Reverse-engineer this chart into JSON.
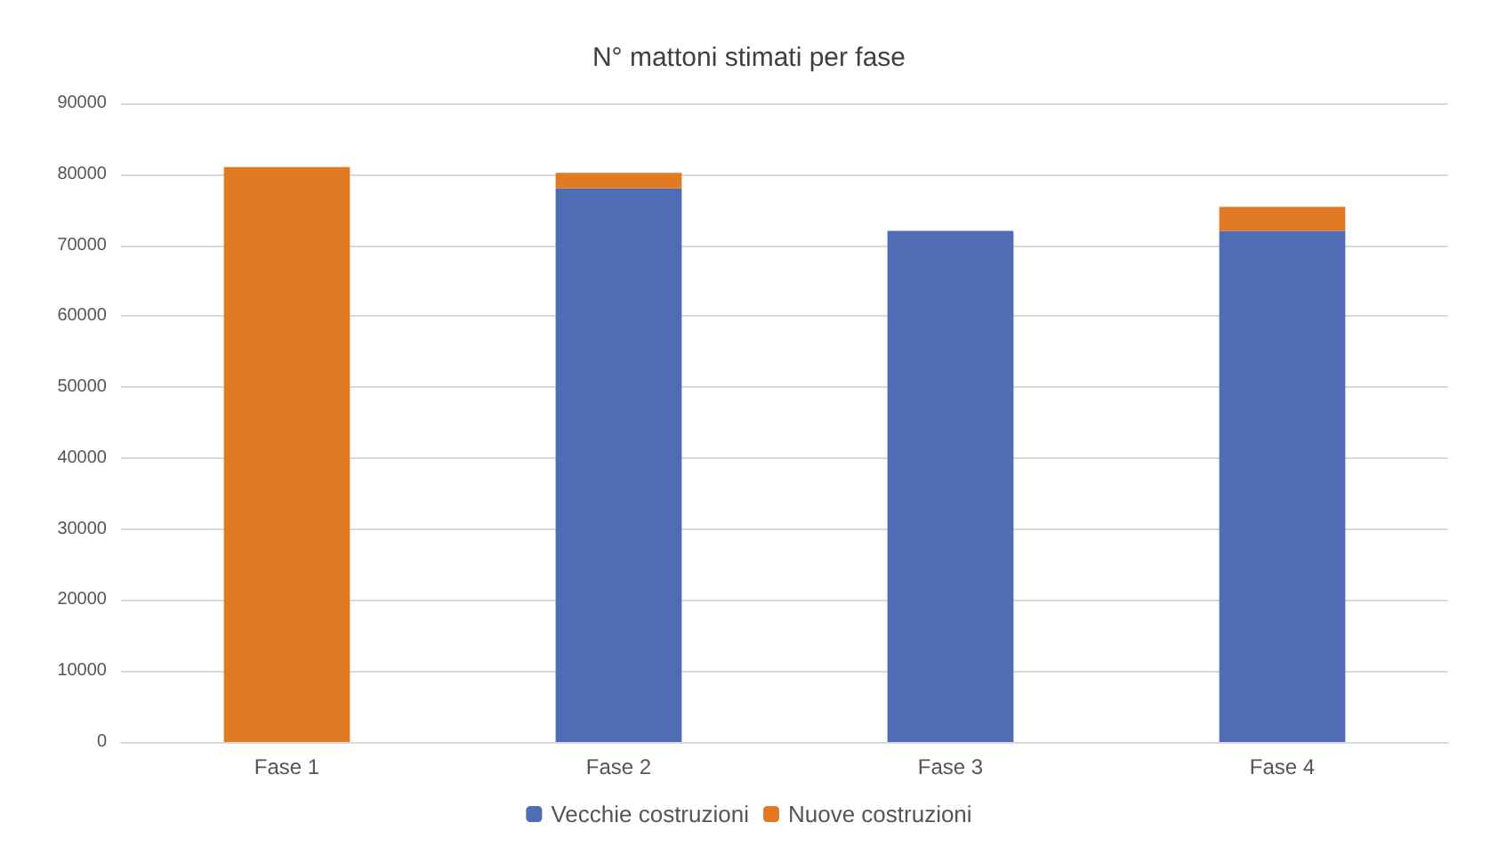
{
  "chart_data": {
    "type": "bar",
    "title": "N° mattoni stimati per fase",
    "categories": [
      "Fase 1",
      "Fase 2",
      "Fase 3",
      "Fase 4"
    ],
    "stacked": true,
    "series": [
      {
        "name": "Vecchie costruzioni",
        "color": "#4f6cb5",
        "values": [
          0,
          78000,
          72000,
          72000
        ]
      },
      {
        "name": "Nuove costruzioni",
        "color": "#e07a24",
        "values": [
          81000,
          2200,
          0,
          3400
        ]
      }
    ],
    "ylim": [
      0,
      90000
    ],
    "yticks": [
      0,
      10000,
      20000,
      30000,
      40000,
      50000,
      60000,
      70000,
      80000,
      90000
    ],
    "grid": "y",
    "legend": "bottom"
  }
}
